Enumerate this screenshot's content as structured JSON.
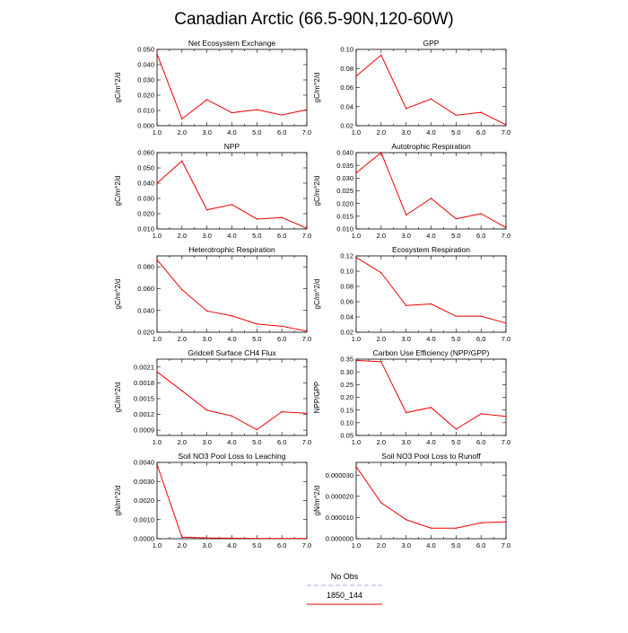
{
  "title": "Canadian Arctic (66.5-90N,120-60W)",
  "legend": [
    {
      "label": "No Obs",
      "color": "#a8a8f0",
      "dash": true
    },
    {
      "label": "1850_144",
      "color": "#ee0000",
      "dash": false
    }
  ],
  "chart_data": [
    {
      "type": "line",
      "title": "Net Ecosystem Exchange",
      "ylabel": "gC/m^2/d",
      "x": [
        1,
        2,
        3,
        4,
        5,
        6,
        7
      ],
      "xlim": [
        1,
        7
      ],
      "xticks": [
        "1.0",
        "2.0",
        "3.0",
        "4.0",
        "5.0",
        "6.0",
        "7.0"
      ],
      "ylim": [
        0,
        0.05
      ],
      "yticks": [
        0,
        0.01,
        0.02,
        0.03,
        0.04,
        0.05
      ],
      "ytick_labels": [
        "0.000",
        "0.010",
        "0.020",
        "0.030",
        "0.040",
        "0.050"
      ],
      "series": [
        {
          "name": "1850_144",
          "values": [
            0.047,
            0.0045,
            0.017,
            0.0085,
            0.0105,
            0.007,
            0.0105
          ]
        }
      ]
    },
    {
      "type": "line",
      "title": "GPP",
      "ylabel": "gC/m^2/d",
      "x": [
        1,
        2,
        3,
        4,
        5,
        6,
        7
      ],
      "xlim": [
        1,
        7
      ],
      "xticks": [
        "1.0",
        "2.0",
        "3.0",
        "4.0",
        "5.0",
        "6.0",
        "7.0"
      ],
      "ylim": [
        0.02,
        0.1
      ],
      "yticks": [
        0.02,
        0.04,
        0.06,
        0.08,
        0.1
      ],
      "ytick_labels": [
        "0.02",
        "0.04",
        "0.06",
        "0.08",
        "0.10"
      ],
      "series": [
        {
          "name": "1850_144",
          "values": [
            0.072,
            0.094,
            0.038,
            0.048,
            0.031,
            0.034,
            0.021
          ]
        }
      ]
    },
    {
      "type": "line",
      "title": "NPP",
      "ylabel": "gC/m^2/d",
      "x": [
        1,
        2,
        3,
        4,
        5,
        6,
        7
      ],
      "xlim": [
        1,
        7
      ],
      "xticks": [
        "1.0",
        "2.0",
        "3.0",
        "4.0",
        "5.0",
        "6.0",
        "7.0"
      ],
      "ylim": [
        0.01,
        0.06
      ],
      "yticks": [
        0.01,
        0.02,
        0.03,
        0.04,
        0.05,
        0.06
      ],
      "ytick_labels": [
        "0.010",
        "0.020",
        "0.030",
        "0.040",
        "0.050",
        "0.060"
      ],
      "series": [
        {
          "name": "1850_144",
          "values": [
            0.04,
            0.0545,
            0.0225,
            0.026,
            0.0165,
            0.0175,
            0.0105
          ]
        }
      ]
    },
    {
      "type": "line",
      "title": "Autotrophic Respiration",
      "ylabel": "gC/m^2/d",
      "x": [
        1,
        2,
        3,
        4,
        5,
        6,
        7
      ],
      "xlim": [
        1,
        7
      ],
      "xticks": [
        "1.0",
        "2.0",
        "3.0",
        "4.0",
        "5.0",
        "6.0",
        "7.0"
      ],
      "ylim": [
        0.01,
        0.04
      ],
      "yticks": [
        0.01,
        0.015,
        0.02,
        0.025,
        0.03,
        0.035,
        0.04
      ],
      "ytick_labels": [
        "0.010",
        "0.015",
        "0.020",
        "0.025",
        "0.030",
        "0.035",
        "0.040"
      ],
      "series": [
        {
          "name": "1850_144",
          "values": [
            0.032,
            0.04,
            0.0155,
            0.022,
            0.014,
            0.016,
            0.0105
          ]
        }
      ]
    },
    {
      "type": "line",
      "title": "Heterotrophic Respiration",
      "ylabel": "gC/m^2/d",
      "x": [
        1,
        2,
        3,
        4,
        5,
        6,
        7
      ],
      "xlim": [
        1,
        7
      ],
      "xticks": [
        "1.0",
        "2.0",
        "3.0",
        "4.0",
        "5.0",
        "6.0",
        "7.0"
      ],
      "ylim": [
        0.02,
        0.09
      ],
      "yticks": [
        0.02,
        0.04,
        0.06,
        0.08
      ],
      "ytick_labels": [
        "0.020",
        "0.040",
        "0.060",
        "0.080"
      ],
      "series": [
        {
          "name": "1850_144",
          "values": [
            0.0865,
            0.059,
            0.0395,
            0.035,
            0.0275,
            0.0255,
            0.021
          ]
        }
      ]
    },
    {
      "type": "line",
      "title": "Ecosystem Respiration",
      "ylabel": "gC/m^2/d",
      "x": [
        1,
        2,
        3,
        4,
        5,
        6,
        7
      ],
      "xlim": [
        1,
        7
      ],
      "xticks": [
        "1.0",
        "2.0",
        "3.0",
        "4.0",
        "5.0",
        "6.0",
        "7.0"
      ],
      "ylim": [
        0.02,
        0.12
      ],
      "yticks": [
        0.02,
        0.04,
        0.06,
        0.08,
        0.1,
        0.12
      ],
      "ytick_labels": [
        "0.02",
        "0.04",
        "0.06",
        "0.08",
        "0.10",
        "0.12"
      ],
      "series": [
        {
          "name": "1850_144",
          "values": [
            0.118,
            0.098,
            0.055,
            0.057,
            0.041,
            0.041,
            0.032
          ]
        }
      ]
    },
    {
      "type": "line",
      "title": "Gridcell Surface CH4 Flux",
      "ylabel": "gC/m^2/d",
      "x": [
        1,
        2,
        3,
        4,
        5,
        6,
        7
      ],
      "xlim": [
        1,
        7
      ],
      "xticks": [
        "1.0",
        "2.0",
        "3.0",
        "4.0",
        "5.0",
        "6.0",
        "7.0"
      ],
      "ylim": [
        0.0008,
        0.00225
      ],
      "yticks": [
        0.0009,
        0.0012,
        0.0015,
        0.0018,
        0.0021
      ],
      "ytick_labels": [
        "0.0009",
        "0.0012",
        "0.0015",
        "0.0018",
        "0.0021"
      ],
      "series": [
        {
          "name": "1850_144",
          "values": [
            0.00201,
            0.00165,
            0.00128,
            0.00117,
            0.00091,
            0.00125,
            0.00122
          ]
        }
      ]
    },
    {
      "type": "line",
      "title": "Carbon Use Efficiency (NPP/GPP)",
      "ylabel": "NPP/GPP",
      "x": [
        1,
        2,
        3,
        4,
        5,
        6,
        7
      ],
      "xlim": [
        1,
        7
      ],
      "xticks": [
        "1.0",
        "2.0",
        "3.0",
        "4.0",
        "5.0",
        "6.0",
        "7.0"
      ],
      "ylim": [
        0.05,
        0.35
      ],
      "yticks": [
        0.05,
        0.1,
        0.15,
        0.2,
        0.25,
        0.3,
        0.35
      ],
      "ytick_labels": [
        "0.05",
        "0.10",
        "0.15",
        "0.20",
        "0.25",
        "0.30",
        "0.35"
      ],
      "series": [
        {
          "name": "1850_144",
          "values": [
            0.345,
            0.34,
            0.14,
            0.16,
            0.075,
            0.135,
            0.125
          ]
        }
      ]
    },
    {
      "type": "line",
      "title": "Soil NO3 Pool Loss to Leaching",
      "ylabel": "gN/m^2/d",
      "x": [
        1,
        2,
        3,
        4,
        5,
        6,
        7
      ],
      "xlim": [
        1,
        7
      ],
      "xticks": [
        "1.0",
        "2.0",
        "3.0",
        "4.0",
        "5.0",
        "6.0",
        "7.0"
      ],
      "ylim": [
        0,
        0.004
      ],
      "yticks": [
        0,
        0.001,
        0.002,
        0.003,
        0.004
      ],
      "ytick_labels": [
        "0.0000",
        "0.0010",
        "0.0020",
        "0.0030",
        "0.0040"
      ],
      "series": [
        {
          "name": "1850_144",
          "values": [
            0.0039,
            8e-05,
            4e-05,
            3e-05,
            1e-05,
            1e-05,
            1e-05
          ]
        }
      ]
    },
    {
      "type": "line",
      "title": "Soil NO3 Pool Loss to Runoff",
      "ylabel": "gN/m^2/d",
      "x": [
        1,
        2,
        3,
        4,
        5,
        6,
        7
      ],
      "xlim": [
        1,
        7
      ],
      "xticks": [
        "1.0",
        "2.0",
        "3.0",
        "4.0",
        "5.0",
        "6.0",
        "7.0"
      ],
      "ylim": [
        0,
        3.6e-05
      ],
      "yticks": [
        0,
        1e-05,
        2e-05,
        3e-05
      ],
      "ytick_labels": [
        "0.000000",
        "0.000010",
        "0.000020",
        "0.000030"
      ],
      "series": [
        {
          "name": "1850_144",
          "values": [
            3.4e-05,
            1.7e-05,
            9e-06,
            5e-06,
            5e-06,
            7.5e-06,
            8e-06
          ]
        }
      ]
    }
  ]
}
